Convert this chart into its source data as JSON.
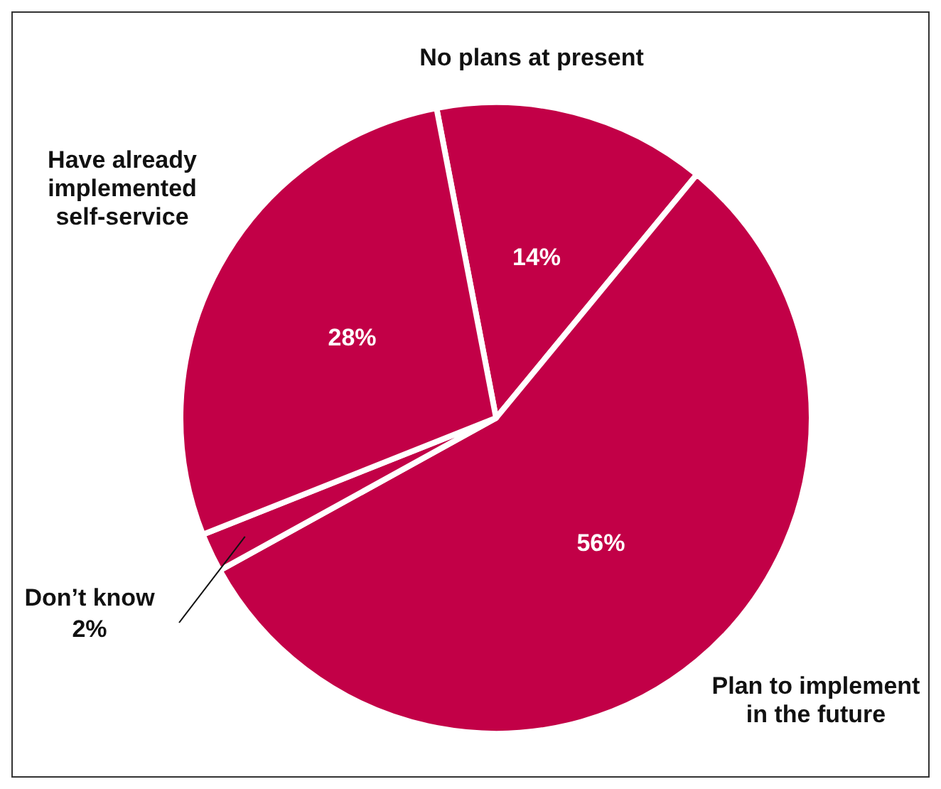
{
  "chart_data": {
    "type": "pie",
    "categories": [
      "No plans at present",
      "Plan to implement in the future",
      "Don’t know",
      "Have already implemented self-service"
    ],
    "values": [
      14,
      56,
      2,
      28
    ],
    "colors": [
      "#c20047",
      "#c20047",
      "#c20047",
      "#c20047"
    ],
    "value_labels": [
      "14%",
      "56%",
      "2%",
      "28%"
    ]
  }
}
